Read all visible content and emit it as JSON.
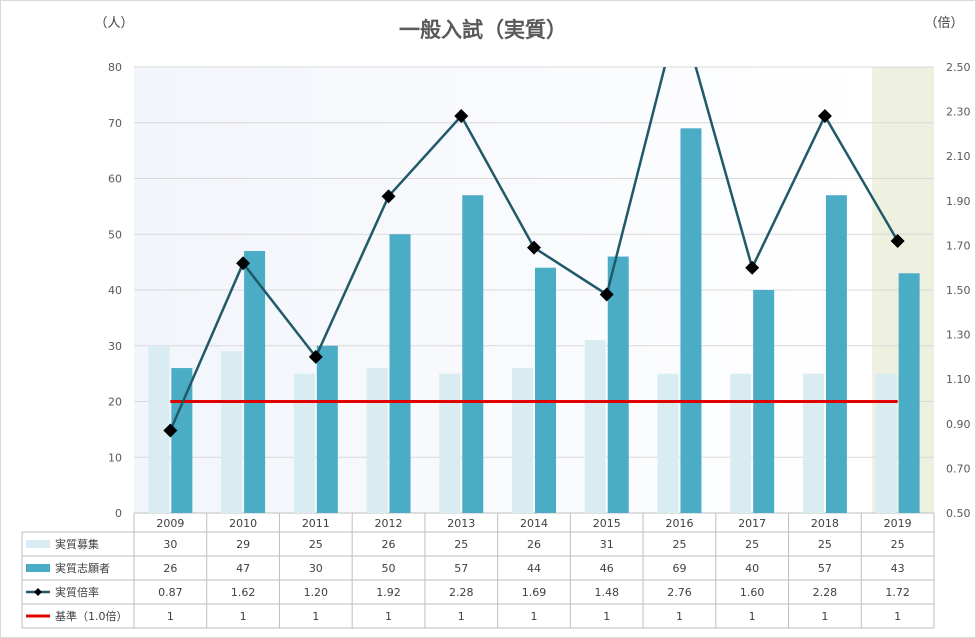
{
  "colors": {
    "bar_capacity": "#d8ecf1",
    "bar_applicants": "#4bacc6",
    "line_ratio": "#215968",
    "line_baseline": "#e00000",
    "plot_bg_left": "#f3f6fb",
    "plot_bg_right": "#eef0e0"
  },
  "chart_data": {
    "type": "bar",
    "title": "一般入試（実質）",
    "y_left_unit": "（人）",
    "y_right_unit": "（倍）",
    "ylim": [
      0,
      80
    ],
    "y2lim": [
      0.5,
      2.5
    ],
    "y_ticks": [
      "0",
      "10",
      "20",
      "30",
      "40",
      "50",
      "60",
      "70",
      "80"
    ],
    "y2_ticks": [
      "0.50",
      "0.70",
      "0.90",
      "1.10",
      "1.30",
      "1.50",
      "1.70",
      "1.90",
      "2.10",
      "2.30",
      "2.50"
    ],
    "categories": [
      "2009",
      "2010",
      "2011",
      "2012",
      "2013",
      "2014",
      "2015",
      "2016",
      "2017",
      "2018",
      "2019"
    ],
    "series": [
      {
        "name": "実質募集",
        "type": "bar",
        "axis": "left",
        "values": [
          30,
          29,
          25,
          26,
          25,
          26,
          31,
          25,
          25,
          25,
          25
        ],
        "labels": [
          "30",
          "29",
          "25",
          "26",
          "25",
          "26",
          "31",
          "25",
          "25",
          "25",
          "25"
        ]
      },
      {
        "name": "実質志願者",
        "type": "bar",
        "axis": "left",
        "values": [
          26,
          47,
          30,
          50,
          57,
          44,
          46,
          69,
          40,
          57,
          43
        ],
        "labels": [
          "26",
          "47",
          "30",
          "50",
          "57",
          "44",
          "46",
          "69",
          "40",
          "57",
          "43"
        ]
      },
      {
        "name": "実質倍率",
        "type": "line",
        "axis": "right",
        "values": [
          0.87,
          1.62,
          1.2,
          1.92,
          2.28,
          1.69,
          1.48,
          2.76,
          1.6,
          2.28,
          1.72
        ],
        "labels": [
          "0.87",
          "1.62",
          "1.20",
          "1.92",
          "2.28",
          "1.69",
          "1.48",
          "2.76",
          "1.60",
          "2.28",
          "1.72"
        ]
      },
      {
        "name": "基準（1.0倍）",
        "type": "line",
        "axis": "right",
        "values": [
          1,
          1,
          1,
          1,
          1,
          1,
          1,
          1,
          1,
          1,
          1
        ],
        "labels": [
          "1",
          "1",
          "1",
          "1",
          "1",
          "1",
          "1",
          "1",
          "1",
          "1",
          "1"
        ]
      }
    ],
    "legend": "data-table"
  }
}
